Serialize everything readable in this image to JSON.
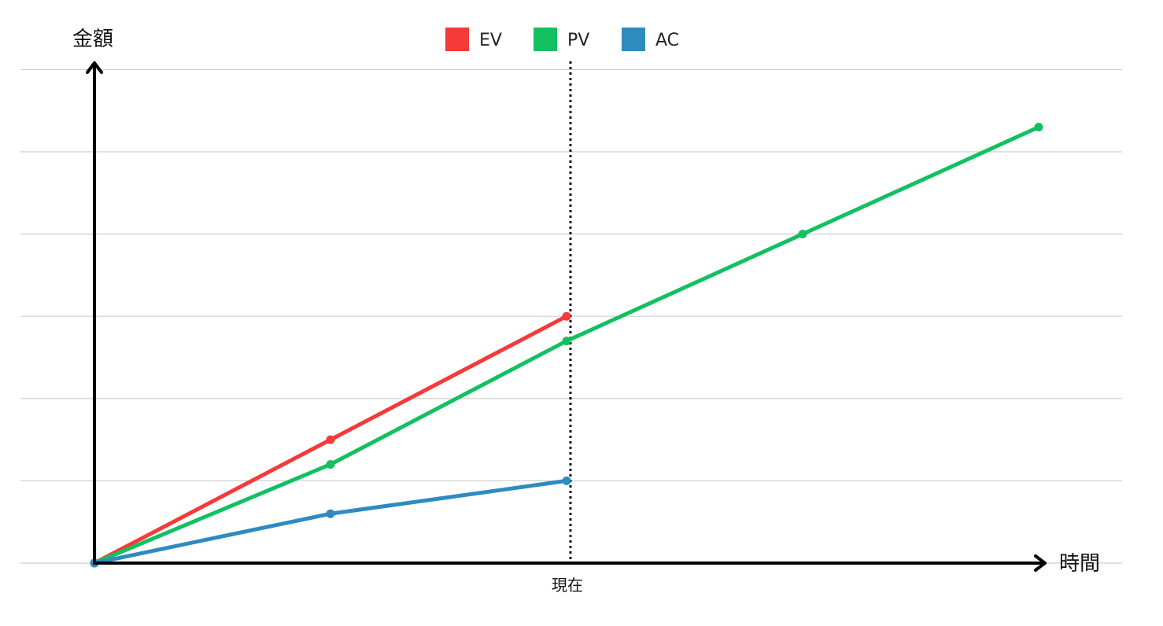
{
  "chart_data": {
    "type": "line",
    "title": "",
    "xlabel": "時間",
    "ylabel": "金額",
    "x": [
      0,
      1,
      2,
      3,
      4
    ],
    "xlim": [
      0,
      4.2
    ],
    "ylim": [
      0,
      6
    ],
    "grid": true,
    "legend": "top-center",
    "x_annotations": [
      {
        "x": 2,
        "label": "現在",
        "style": "dotted-vertical"
      }
    ],
    "series": [
      {
        "name": "EV",
        "color": "#f53a3a",
        "x": [
          0,
          1,
          2
        ],
        "values": [
          0,
          1.5,
          3.0
        ]
      },
      {
        "name": "PV",
        "color": "#12c060",
        "x": [
          0,
          1,
          2,
          3,
          4
        ],
        "values": [
          0,
          1.2,
          2.7,
          4.0,
          5.3
        ]
      },
      {
        "name": "AC",
        "color": "#2e8bc0",
        "x": [
          0,
          1,
          2
        ],
        "values": [
          0,
          0.6,
          1.0
        ]
      }
    ]
  }
}
